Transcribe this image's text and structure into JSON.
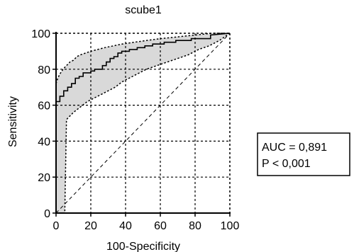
{
  "chart_data": {
    "type": "line",
    "title": "scube1",
    "xlabel": "100-Specificity",
    "ylabel": "Sensitivity",
    "xlim": [
      0,
      100
    ],
    "ylim": [
      0,
      100
    ],
    "x_ticks": [
      0,
      20,
      40,
      60,
      80,
      100
    ],
    "y_ticks": [
      0,
      20,
      40,
      60,
      80,
      100
    ],
    "grid": true,
    "series": [
      {
        "role": "roc-curve",
        "style": "solid",
        "x": [
          0,
          0,
          2.2,
          2.2,
          4.4,
          4.4,
          6.7,
          6.7,
          8.9,
          8.9,
          11.1,
          11.1,
          13.3,
          13.3,
          15.6,
          15.6,
          20,
          20,
          22.2,
          22.2,
          26.7,
          26.7,
          28.9,
          28.9,
          31.1,
          31.1,
          33.3,
          33.3,
          35.6,
          35.6,
          37.8,
          37.8,
          42.2,
          42.2,
          46.7,
          46.7,
          51.1,
          51.1,
          55.6,
          55.6,
          62.2,
          62.2,
          68.9,
          68.9,
          77.8,
          77.8,
          88.9,
          88.9,
          100
        ],
        "y": [
          0,
          62,
          62,
          65,
          65,
          68,
          68,
          70,
          70,
          72,
          72,
          75,
          75,
          76,
          76,
          78,
          78,
          79,
          79,
          80,
          80,
          82,
          82,
          84,
          84,
          86,
          86,
          87,
          87,
          89,
          89,
          90,
          90,
          91,
          91,
          92,
          92,
          93,
          93,
          94,
          94,
          95,
          95,
          96,
          96,
          97,
          97,
          99,
          100
        ]
      },
      {
        "role": "ci-upper",
        "style": "dotted",
        "x": [
          0,
          1,
          2,
          4,
          6,
          8,
          10,
          12,
          14,
          17,
          20,
          24,
          28,
          33,
          38,
          45,
          52,
          60,
          70,
          80,
          90,
          100
        ],
        "y": [
          72,
          75,
          77,
          80,
          82,
          84,
          85,
          87,
          88,
          89,
          90,
          91,
          92,
          93,
          94,
          95,
          96,
          97,
          98,
          99,
          100,
          100
        ]
      },
      {
        "role": "ci-lower",
        "style": "dotted",
        "x": [
          0,
          2,
          4,
          5,
          6,
          8,
          10,
          14,
          18,
          22,
          26,
          30,
          34,
          38,
          42,
          46,
          52,
          58,
          64,
          70,
          76,
          82,
          88,
          94,
          100
        ],
        "y": [
          0,
          0,
          0,
          0,
          52,
          54,
          56,
          59,
          62,
          64,
          66,
          68,
          70,
          73,
          75,
          77,
          80,
          82,
          84,
          86,
          88,
          91,
          93,
          96,
          100
        ]
      },
      {
        "role": "reference-diagonal",
        "style": "dashed",
        "x": [
          0,
          100
        ],
        "y": [
          0,
          100
        ]
      }
    ],
    "annotations": {
      "auc": "AUC = 0,891",
      "p": "P < 0,001"
    }
  },
  "colors": {
    "curve": "#000000",
    "ci_band": "#d9d9d9",
    "grid": "#000000",
    "background": "#ffffff"
  }
}
